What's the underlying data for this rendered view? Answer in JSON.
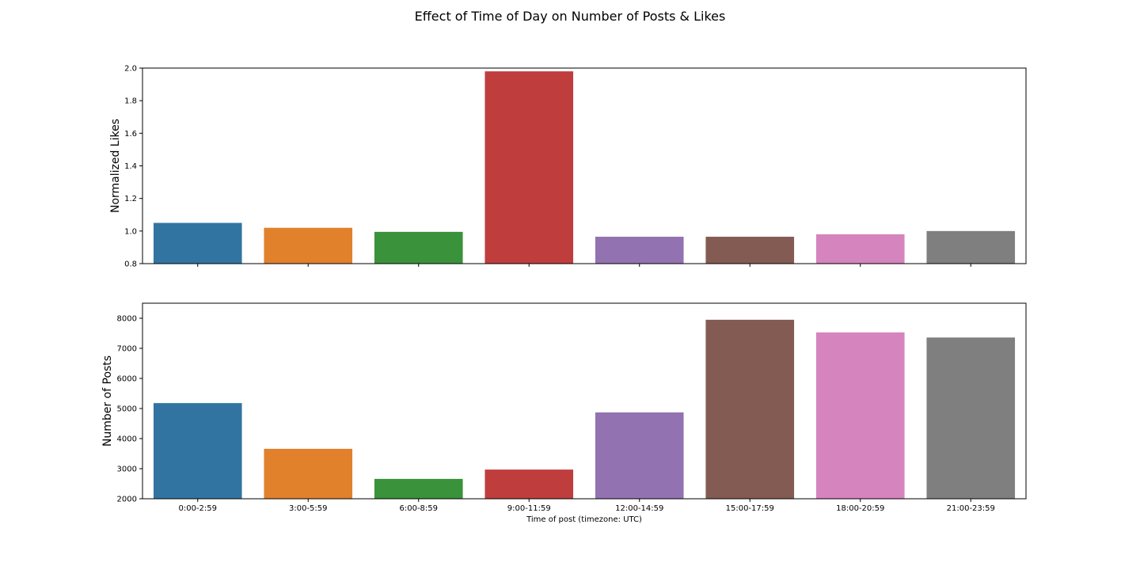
{
  "chart_data": {
    "title": "Effect of Time of Day on Number of Posts & Likes",
    "xlabel": "Time of post (timezone: UTC)",
    "categories": [
      "0:00-2:59",
      "3:00-5:59",
      "6:00-8:59",
      "9:00-11:59",
      "12:00-14:59",
      "15:00-17:59",
      "18:00-20:59",
      "21:00-23:59"
    ],
    "colors": [
      "#3274a1",
      "#e1812c",
      "#3a923a",
      "#c03d3e",
      "#9372b2",
      "#845b53",
      "#d684bd",
      "#7f7f7f"
    ],
    "subplots": [
      {
        "type": "bar",
        "ylabel": "Normalized Likes",
        "ylim": [
          0.8,
          2.0
        ],
        "yticks": [
          0.8,
          1.0,
          1.2,
          1.4,
          1.6,
          1.8,
          2.0
        ],
        "ytick_labels": [
          "0.8",
          "1.0",
          "1.2",
          "1.4",
          "1.6",
          "1.8",
          "2.0"
        ],
        "values": [
          1.05,
          1.02,
          0.995,
          1.98,
          0.965,
          0.965,
          0.98,
          1.0
        ],
        "show_xtick_labels": false
      },
      {
        "type": "bar",
        "ylabel": "Number of Posts",
        "ylim": [
          2000,
          8500
        ],
        "yticks": [
          2000,
          3000,
          4000,
          5000,
          6000,
          7000,
          8000
        ],
        "ytick_labels": [
          "2000",
          "3000",
          "4000",
          "5000",
          "6000",
          "7000",
          "8000"
        ],
        "values": [
          5180,
          3660,
          2660,
          2970,
          4870,
          7950,
          7530,
          7360
        ],
        "show_xtick_labels": true
      }
    ]
  }
}
